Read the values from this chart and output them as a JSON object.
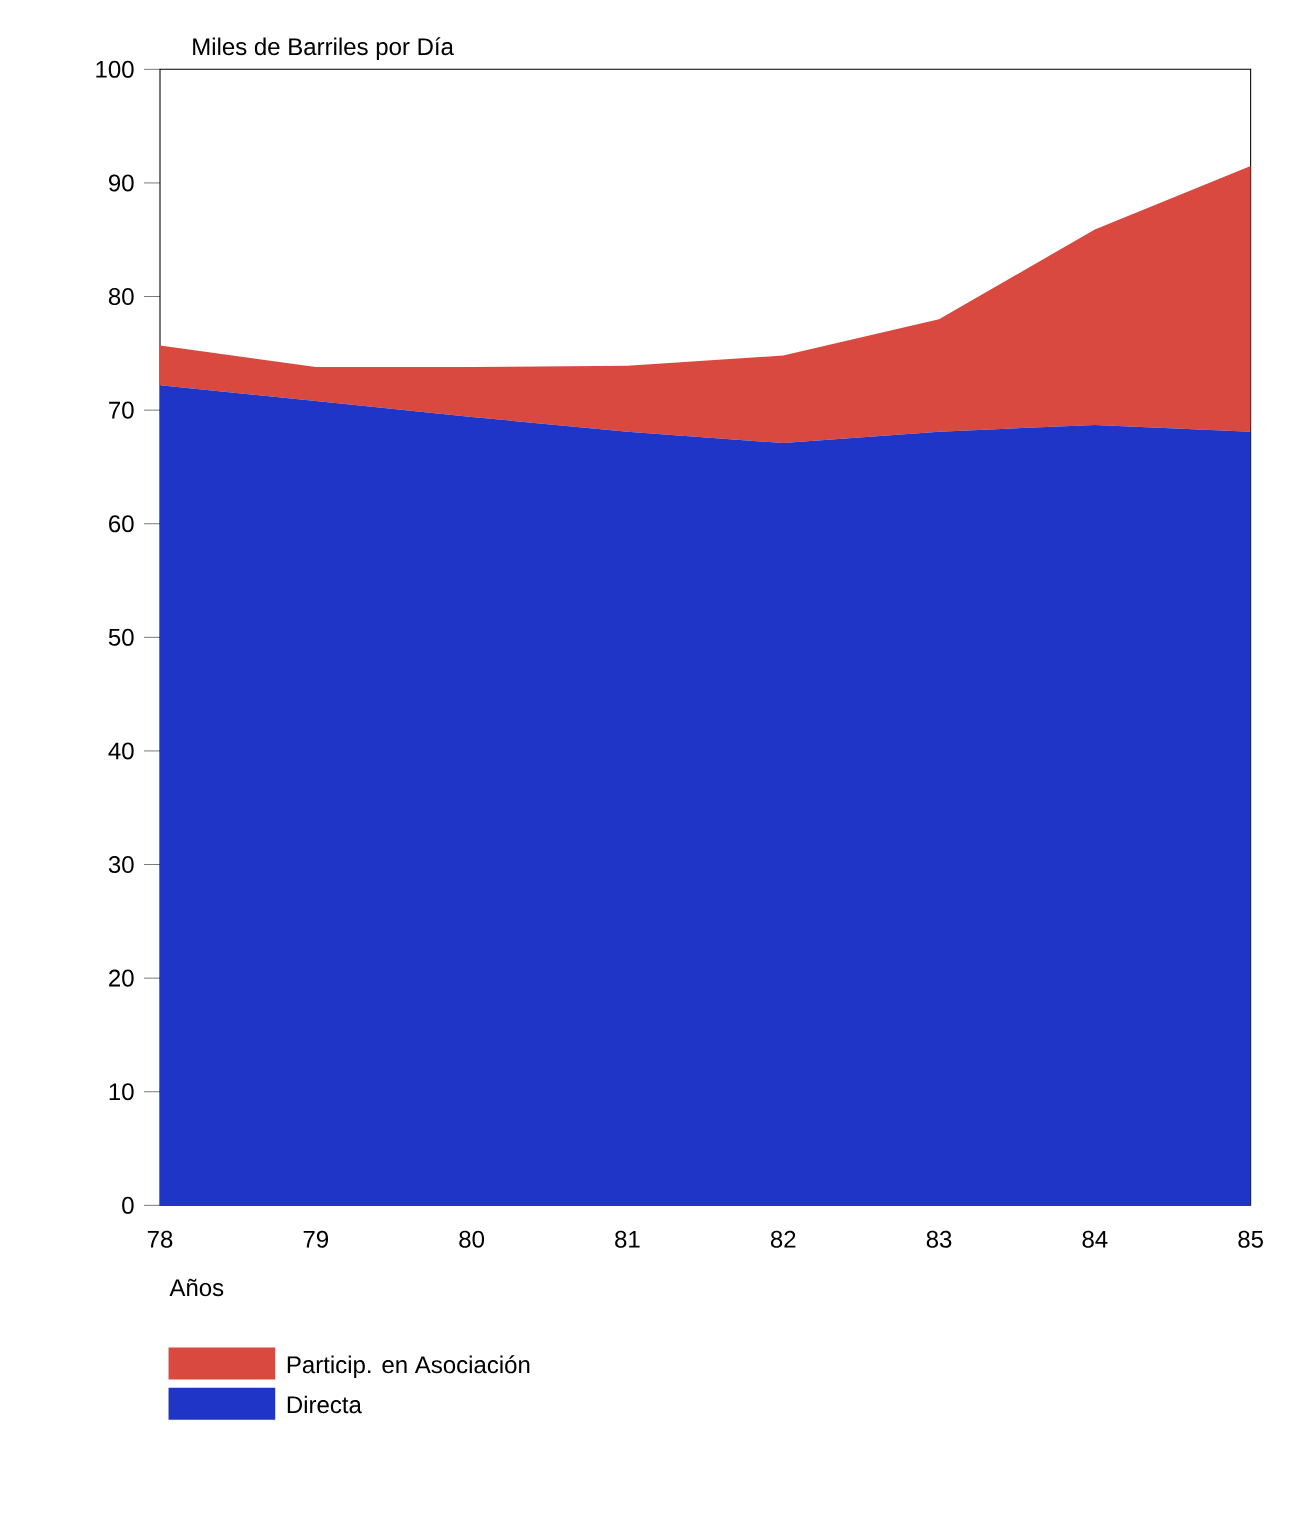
{
  "chart_data": {
    "type": "area",
    "stacked": true,
    "ylabel": "Miles de Barriles por Día",
    "xlabel": "Años",
    "categories": [
      "78",
      "79",
      "80",
      "81",
      "82",
      "83",
      "84",
      "85"
    ],
    "series": [
      {
        "name": "Directa",
        "color": "#1f35c8",
        "values": [
          72.2,
          70.8,
          69.4,
          68.1,
          67.1,
          68.1,
          68.7,
          68.1
        ]
      },
      {
        "name": "Particip. en Asociación",
        "color": "#d9493f",
        "values": [
          3.5,
          3.0,
          4.4,
          5.8,
          7.7,
          9.9,
          17.2,
          23.4
        ]
      }
    ],
    "ylim": [
      0,
      100
    ],
    "yticks": [
      0,
      10,
      20,
      30,
      40,
      50,
      60,
      70,
      80,
      90,
      100
    ],
    "grid": false,
    "legend": "bottom left"
  }
}
